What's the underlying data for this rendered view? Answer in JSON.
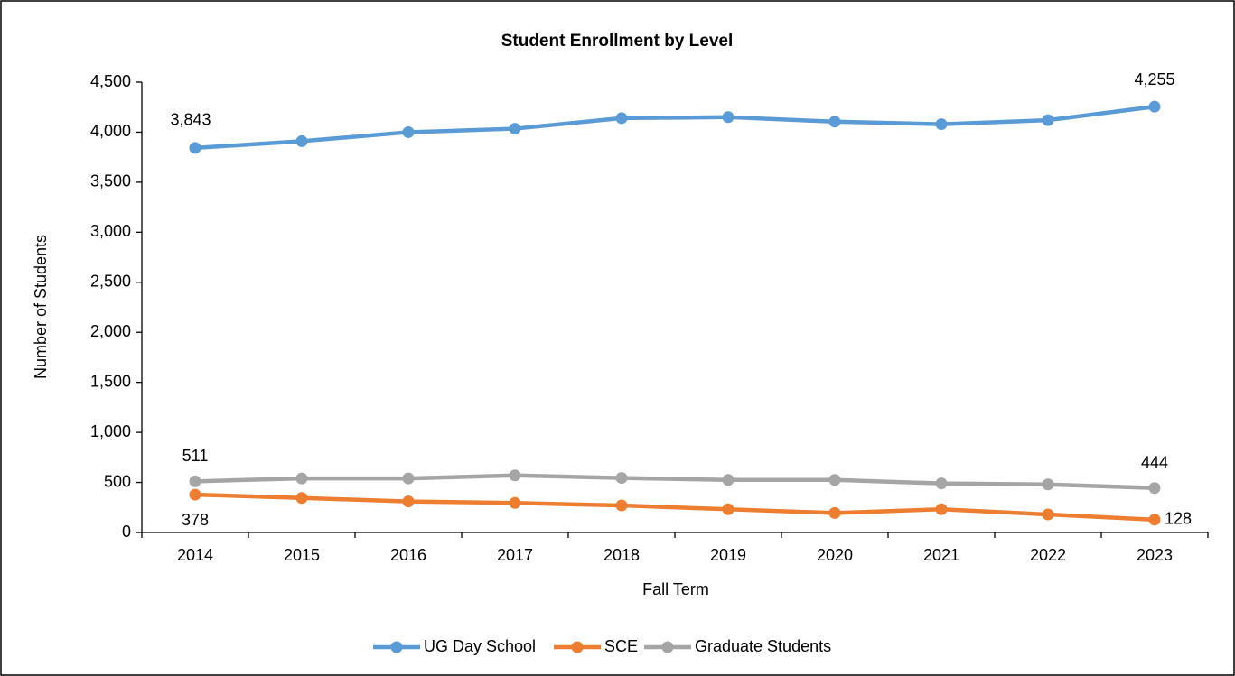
{
  "chart_data": {
    "type": "line",
    "title": "Student Enrollment by Level",
    "x_label": "Fall Term",
    "y_label": "Number of Students",
    "categories": [
      "2014",
      "2015",
      "2016",
      "2017",
      "2018",
      "2019",
      "2020",
      "2021",
      "2022",
      "2023"
    ],
    "series": [
      {
        "name": "UG Day School",
        "color": "#5b9bd5",
        "values": [
          3843,
          3910,
          4000,
          4035,
          4140,
          4150,
          4105,
          4080,
          4120,
          4255
        ],
        "value_labels": [
          "3,843",
          null,
          null,
          null,
          null,
          null,
          null,
          null,
          null,
          "4,255"
        ]
      },
      {
        "name": "SCE",
        "color": "#ed7d31",
        "values": [
          378,
          345,
          310,
          295,
          270,
          232,
          195,
          232,
          180,
          128
        ],
        "value_labels": [
          "378",
          null,
          null,
          null,
          null,
          null,
          null,
          null,
          null,
          "128"
        ]
      },
      {
        "name": "Graduate Students",
        "color": "#a5a5a5",
        "values": [
          511,
          540,
          540,
          570,
          545,
          525,
          525,
          490,
          480,
          444
        ],
        "value_labels": [
          "511",
          null,
          null,
          null,
          null,
          null,
          null,
          null,
          null,
          "444"
        ]
      }
    ],
    "ylim": [
      0,
      4500
    ],
    "yticks": [
      0,
      500,
      {
        "value": 1000,
        "label": "1,000"
      },
      {
        "value": 1500,
        "label": "1,500"
      },
      {
        "value": 2000,
        "label": "2,000"
      },
      {
        "value": 2500,
        "label": "2,500"
      },
      {
        "value": 3000,
        "label": "3,000"
      },
      {
        "value": 3500,
        "label": "3,500"
      },
      {
        "value": 4000,
        "label": "4,000"
      },
      {
        "value": 4500,
        "label": "4,500"
      }
    ],
    "grid": false,
    "legend": "bottom"
  }
}
